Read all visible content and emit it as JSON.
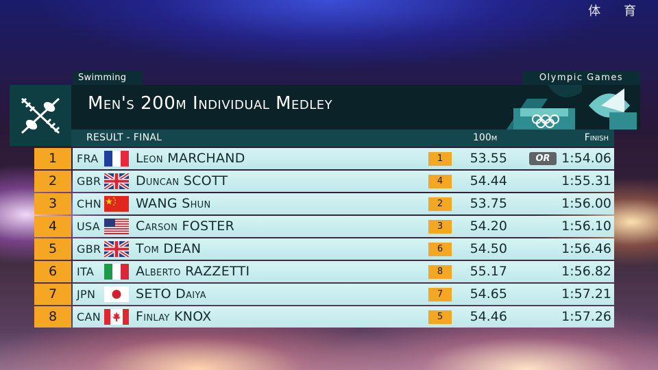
{
  "broadcaster": "体 育",
  "header": {
    "sport": "Swimming",
    "games": "Olympic Games",
    "event": "Men's 200m Individual Medley",
    "subtitle": "Result - Final",
    "col_100m": "100m",
    "col_finish": "Finish"
  },
  "colors": {
    "rank_bg": "#f5a623",
    "row_bg": "#d6f3f4",
    "title_bg": "#0b2328",
    "record_bg": "#5e6466"
  },
  "icons": {
    "pictogram": "swimming-pictogram-icon",
    "rings": "olympic-rings-icon"
  },
  "results": [
    {
      "rank": "1",
      "noc": "FRA",
      "flag": "fra",
      "name": "Leon MARCHAND",
      "pos100": "1",
      "split100": "53.55",
      "record": "OR",
      "finish": "1:54.06"
    },
    {
      "rank": "2",
      "noc": "GBR",
      "flag": "gbr",
      "name": "Duncan SCOTT",
      "pos100": "4",
      "split100": "54.44",
      "record": "",
      "finish": "1:55.31"
    },
    {
      "rank": "3",
      "noc": "CHN",
      "flag": "chn",
      "name": "WANG Shun",
      "pos100": "2",
      "split100": "53.75",
      "record": "",
      "finish": "1:56.00"
    },
    {
      "rank": "4",
      "noc": "USA",
      "flag": "usa",
      "name": "Carson FOSTER",
      "pos100": "3",
      "split100": "54.20",
      "record": "",
      "finish": "1:56.10"
    },
    {
      "rank": "5",
      "noc": "GBR",
      "flag": "gbr",
      "name": "Tom DEAN",
      "pos100": "6",
      "split100": "54.50",
      "record": "",
      "finish": "1:56.46"
    },
    {
      "rank": "6",
      "noc": "ITA",
      "flag": "ita",
      "name": "Alberto RAZZETTI",
      "pos100": "8",
      "split100": "55.17",
      "record": "",
      "finish": "1:56.82"
    },
    {
      "rank": "7",
      "noc": "JPN",
      "flag": "jpn",
      "name": "SETO Daiya",
      "pos100": "7",
      "split100": "54.65",
      "record": "",
      "finish": "1:57.21"
    },
    {
      "rank": "8",
      "noc": "CAN",
      "flag": "can",
      "name": "Finlay KNOX",
      "pos100": "5",
      "split100": "54.46",
      "record": "",
      "finish": "1:57.26"
    }
  ]
}
